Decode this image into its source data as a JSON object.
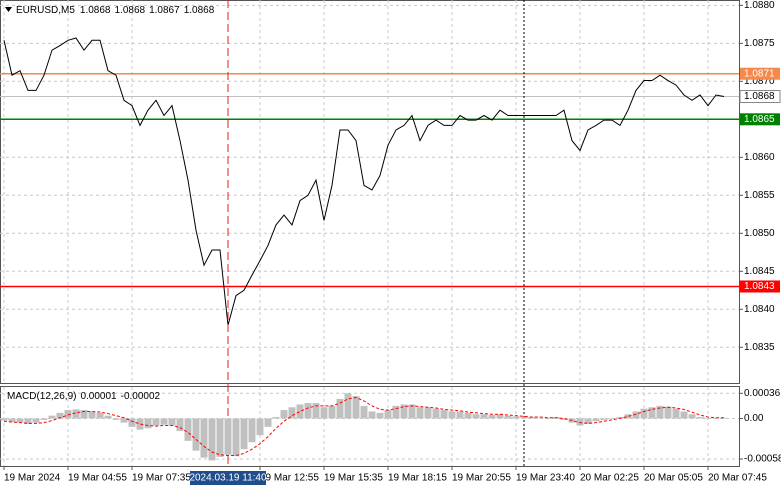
{
  "chart_data": [
    {
      "type": "line",
      "symbol": "EURUSD,M5",
      "ohlc": [
        1.0868,
        1.0868,
        1.0867,
        1.0868
      ],
      "crosshair_label": "2024.03.19 11:40",
      "categories": [
        "19 Mar 2024",
        null,
        null,
        null,
        null,
        null,
        null,
        null,
        "19 Mar 04:55",
        null,
        null,
        null,
        null,
        null,
        null,
        null,
        "19 Mar 07:35",
        null,
        null,
        null,
        null,
        null,
        null,
        null,
        null,
        null,
        null,
        null,
        null,
        null,
        null,
        null,
        "19 Mar 12:55",
        null,
        null,
        null,
        null,
        null,
        null,
        null,
        "19 Mar 15:35",
        null,
        null,
        null,
        null,
        null,
        null,
        null,
        "19 Mar 18:15",
        null,
        null,
        null,
        null,
        null,
        null,
        null,
        "19 Mar 20:55",
        null,
        null,
        null,
        null,
        null,
        null,
        null,
        "19 Mar 23:40",
        null,
        null,
        null,
        null,
        null,
        null,
        null,
        "20 Mar 02:25",
        null,
        null,
        null,
        null,
        null,
        null,
        null,
        "20 Mar 05:05",
        null,
        null,
        null,
        null,
        null,
        null,
        null,
        "20 Mar 07:45",
        null,
        null
      ],
      "series": [
        {
          "color": "#000000",
          "values": [
            1.08754,
            1.08708,
            1.08714,
            1.08688,
            1.08688,
            1.08708,
            1.08741,
            1.08747,
            1.08754,
            1.08757,
            1.08741,
            1.08754,
            1.08754,
            1.08714,
            1.08708,
            1.08675,
            1.08668,
            1.08642,
            1.08662,
            1.08675,
            1.08655,
            1.08668,
            1.08622,
            1.0857,
            1.08504,
            1.08458,
            1.08478,
            1.08478,
            1.08379,
            1.08418,
            1.08425,
            1.08445,
            1.08464,
            1.08484,
            1.08511,
            1.08524,
            1.08511,
            1.08543,
            1.0855,
            1.0857,
            1.08517,
            1.08563,
            1.08636,
            1.08636,
            1.08622,
            1.08563,
            1.08557,
            1.08576,
            1.08616,
            1.08636,
            1.08642,
            1.08655,
            1.08622,
            1.08642,
            1.08649,
            1.08642,
            1.08642,
            1.08655,
            1.08649,
            1.08649,
            1.08655,
            1.08649,
            1.08662,
            1.08655,
            1.08655,
            1.08655,
            1.08655,
            1.08655,
            1.08655,
            1.08655,
            1.08662,
            1.08622,
            1.08609,
            1.08636,
            1.08642,
            1.08649,
            1.08649,
            1.08642,
            1.08662,
            1.08688,
            1.08701,
            1.08701,
            1.08708,
            1.08701,
            1.08695,
            1.08682,
            1.08675,
            1.08682,
            1.08668,
            1.08682,
            1.0868
          ]
        }
      ],
      "levels": [
        {
          "value": 1.0871,
          "color": "#f5894b"
        },
        {
          "value": 1.0865,
          "color": "#008000"
        },
        {
          "value": 1.0843,
          "color": "#ff0000"
        }
      ],
      "current_price": {
        "value": 1.0868,
        "color": "#c0c0c0"
      },
      "ylim": [
        1.08303,
        1.08807
      ],
      "yticks": [
        {
          "value": 1.088,
          "label": "1.0880"
        },
        1.0875,
        {
          "value": 1.087,
          "label": "1.0870"
        },
        {
          "value": 1.086,
          "label": "1.0860"
        },
        1.0855,
        {
          "value": 1.085,
          "label": "1.0850"
        },
        1.0845,
        {
          "value": 1.084,
          "label": "1.0840"
        },
        1.0835
      ],
      "grid": true
    },
    {
      "type": "macd",
      "title": "MACD(12,26,9)",
      "readings": [
        1e-05,
        -2e-05
      ],
      "series": [
        {
          "color": "#c0c0c0",
          "values": [
            -3e-05,
            -5e-05,
            -6e-05,
            -8e-05,
            -6e-05,
            -2e-05,
            4e-05,
            8e-05,
            0.00012,
            0.00013,
            0.00012,
            0.0001,
            8e-05,
            4e-05,
            -2e-05,
            -6e-05,
            -0.00012,
            -0.00016,
            -0.00014,
            -0.0001,
            -9e-05,
            -0.0001,
            -0.00018,
            -0.00032,
            -0.00046,
            -0.00056,
            -0.0006,
            -0.00055,
            -0.00052,
            -0.00054,
            -0.00044,
            -0.00034,
            -0.00024,
            -0.00012,
            2e-05,
            0.00012,
            0.00016,
            0.0002,
            0.00022,
            0.00022,
            0.00016,
            0.00018,
            0.00028,
            0.00036,
            0.00032,
            0.00018,
            0.0001,
            8e-05,
            0.00012,
            0.00018,
            0.0002,
            0.0002,
            0.00016,
            0.00016,
            0.00014,
            0.00012,
            0.0001,
            0.0001,
            8e-05,
            6e-05,
            6e-05,
            5e-05,
            6e-05,
            4e-05,
            3e-05,
            2e-05,
            2e-05,
            1e-05,
            1e-05,
            2e-05,
            -2e-05,
            -6e-05,
            -0.0001,
            -8e-05,
            -4e-05,
            -2e-05,
            0,
            2e-05,
            6e-05,
            0.0001,
            0.00014,
            0.00016,
            0.00018,
            0.00017,
            0.00014,
            0.0001,
            6e-05,
            2e-05,
            0,
            1e-05,
            1e-05
          ]
        },
        {
          "color": "#ff0000",
          "values": [
            -4e-05,
            -5e-05,
            -6e-05,
            -7e-05,
            -7e-05,
            -6e-05,
            -3e-05,
            1e-05,
            5e-05,
            8e-05,
            0.0001,
            0.0001,
            9e-05,
            7e-05,
            4e-05,
            1e-05,
            -4e-05,
            -8e-05,
            -0.0001,
            -0.00011,
            -0.0001,
            -0.0001,
            -0.00013,
            -0.0002,
            -0.0003,
            -0.0004,
            -0.00048,
            -0.00052,
            -0.00053,
            -0.00053,
            -0.0005,
            -0.00044,
            -0.00036,
            -0.00026,
            -0.00014,
            -4e-05,
            4e-05,
            0.0001,
            0.00015,
            0.00018,
            0.00018,
            0.00018,
            0.00022,
            0.00028,
            0.0003,
            0.00025,
            0.00018,
            0.00013,
            0.00012,
            0.00014,
            0.00017,
            0.00018,
            0.00017,
            0.00016,
            0.00015,
            0.00013,
            0.00012,
            0.00011,
            9e-05,
            8e-05,
            7e-05,
            6e-05,
            6e-05,
            5e-05,
            4e-05,
            3e-05,
            2e-05,
            2e-05,
            1e-05,
            1e-05,
            0,
            -3e-05,
            -6e-05,
            -7e-05,
            -6e-05,
            -4e-05,
            -2e-05,
            0,
            3e-05,
            6e-05,
            0.0001,
            0.00013,
            0.00015,
            0.00016,
            0.00015,
            0.00013,
            9e-05,
            5e-05,
            2e-05,
            1e-05,
            1e-05
          ]
        }
      ],
      "ylim": [
        -0.00068,
        0.00045
      ],
      "yticks": [
        0.00036,
        {
          "value": 0,
          "label": "0.00"
        },
        -0.00058
      ],
      "grid": true
    }
  ]
}
